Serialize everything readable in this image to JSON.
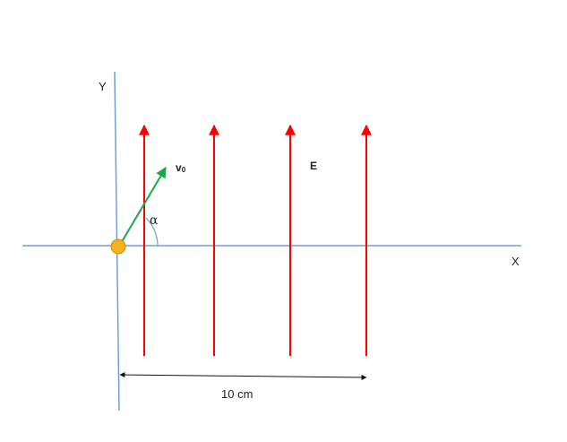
{
  "axes": {
    "x_label": "X",
    "y_label": "Y",
    "color": "#6f9fd8"
  },
  "field": {
    "label": "E",
    "color": "#ff0000",
    "line_count": 4
  },
  "velocity": {
    "symbol": "v",
    "subscript": "0",
    "color": "#1aa84a"
  },
  "angle": {
    "label": "α"
  },
  "particle": {
    "color": "#f5b11f",
    "stroke": "#d08f00"
  },
  "dimension": {
    "label": "10 cm"
  }
}
